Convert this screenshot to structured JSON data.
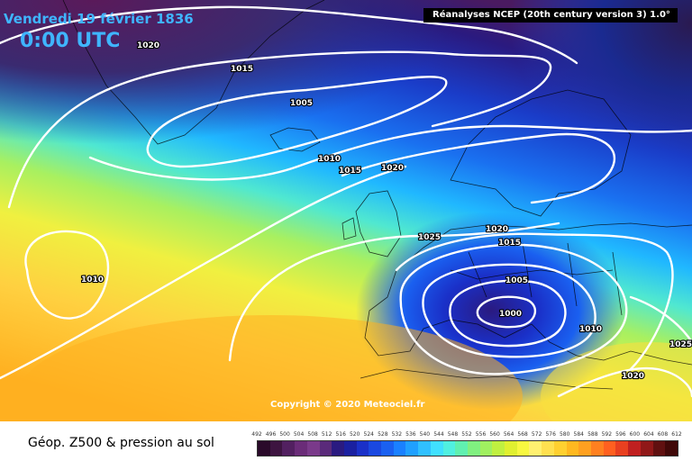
{
  "header": {
    "date": "Vendredi 19 février 1836",
    "time": "0:00 UTC",
    "source": "Réanalyses NCEP (20th century version 3) 1.0°"
  },
  "copyright": "Copyright © 2020 Meteociel.fr",
  "footer": {
    "title": "Géop. Z500 & pression au sol"
  },
  "colors": {
    "z500_scale": [
      "#2a0a2a",
      "#3d1440",
      "#522060",
      "#6a2c78",
      "#7a3a8a",
      "#5a2a7a",
      "#2a1a80",
      "#1a20a0",
      "#1a30c8",
      "#1a48e0",
      "#1a60f0",
      "#1a80ff",
      "#20a0ff",
      "#30c0ff",
      "#40e0ff",
      "#50f0e0",
      "#60f0b0",
      "#80f080",
      "#a0f060",
      "#c0f040",
      "#e0f030",
      "#f8f840",
      "#fff070",
      "#ffe050",
      "#ffd030",
      "#ffb820",
      "#ffa020",
      "#ff8020",
      "#ff6020",
      "#e84020",
      "#c02020",
      "#901818",
      "#601010",
      "#400808"
    ],
    "isobars": "#ffffff"
  },
  "colorbar": {
    "ticks": [
      "492",
      "496",
      "500",
      "504",
      "508",
      "512",
      "516",
      "520",
      "524",
      "528",
      "532",
      "536",
      "540",
      "544",
      "548",
      "552",
      "556",
      "560",
      "564",
      "568",
      "572",
      "576",
      "580",
      "584",
      "588",
      "592",
      "596",
      "600",
      "604",
      "608",
      "612"
    ]
  },
  "isobar_labels": [
    {
      "id": "iso-1020-greenland",
      "value": "1020"
    },
    {
      "id": "iso-1015-north",
      "value": "1015"
    },
    {
      "id": "iso-1005-north",
      "value": "1005"
    },
    {
      "id": "iso-1010-iceland",
      "value": "1010"
    },
    {
      "id": "iso-1015-uk",
      "value": "1015"
    },
    {
      "id": "iso-1020-uk",
      "value": "1020"
    },
    {
      "id": "iso-1025-france",
      "value": "1025"
    },
    {
      "id": "iso-1020-europe",
      "value": "1020"
    },
    {
      "id": "iso-1015-europe",
      "value": "1015"
    },
    {
      "id": "iso-1005-low",
      "value": "1005"
    },
    {
      "id": "iso-1000-low",
      "value": "1000"
    },
    {
      "id": "iso-1010-west",
      "value": "1010"
    },
    {
      "id": "iso-1010-balkans",
      "value": "1010"
    },
    {
      "id": "iso-1025-east",
      "value": "1025"
    },
    {
      "id": "iso-1020-east",
      "value": "1020"
    }
  ]
}
